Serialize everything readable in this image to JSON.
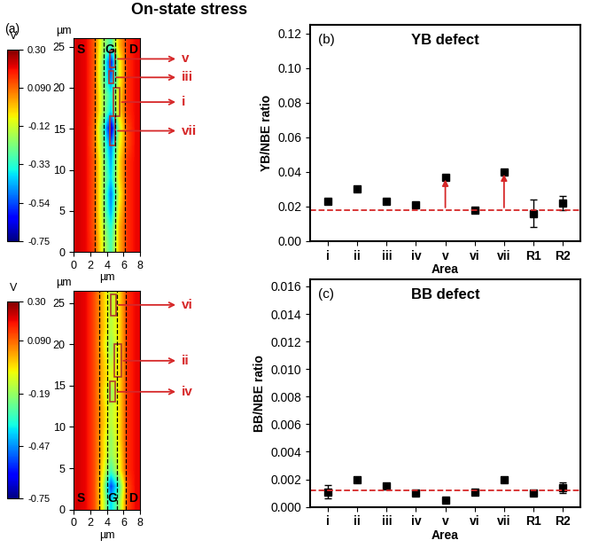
{
  "title": "On-state stress",
  "chart_data": [
    {
      "type": "heatmap",
      "panel_label": "(a)",
      "x_label": "µm",
      "y_label": "µm",
      "colorbar_label": "V",
      "region_labels": [
        "S",
        "G",
        "D"
      ],
      "xlim": [
        0,
        8
      ],
      "ylim": [
        0,
        26
      ],
      "xticks": [
        0,
        2,
        4,
        6,
        8
      ],
      "yticks": [
        0,
        5,
        10,
        15,
        20,
        25
      ],
      "colorbar_range": [
        -0.75,
        0.3
      ],
      "colorbar_ticks": [
        {
          "value": 0.3,
          "label": "0.30"
        },
        {
          "value": 0.09,
          "label": "0.090"
        },
        -0.12,
        -0.33,
        -0.54,
        -0.75
      ],
      "boundaries": [
        2.5,
        3.6,
        5.0,
        6.2
      ],
      "cells": [
        [
          0.22,
          0.2,
          0.1,
          -0.15,
          -0.3,
          0.0,
          0.15,
          0.2
        ],
        [
          0.22,
          0.2,
          0.1,
          -0.2,
          -0.6,
          -0.1,
          0.15,
          0.2
        ],
        [
          0.22,
          0.2,
          0.1,
          -0.2,
          -0.5,
          -0.1,
          0.15,
          0.2
        ],
        [
          0.22,
          0.2,
          0.1,
          -0.15,
          -0.35,
          -0.05,
          0.15,
          0.2
        ],
        [
          0.22,
          0.2,
          0.1,
          -0.15,
          -0.4,
          -0.05,
          0.15,
          0.2
        ],
        [
          0.22,
          0.2,
          0.08,
          -0.25,
          -0.7,
          -0.15,
          0.12,
          0.2
        ],
        [
          0.22,
          0.2,
          0.08,
          -0.2,
          -0.5,
          -0.1,
          0.12,
          0.2
        ],
        [
          0.22,
          0.2,
          0.1,
          -0.15,
          -0.45,
          -0.05,
          0.15,
          0.2
        ],
        [
          0.22,
          0.2,
          0.1,
          -0.15,
          -0.4,
          -0.05,
          0.15,
          0.2
        ],
        [
          0.22,
          0.2,
          0.1,
          -0.15,
          -0.5,
          -0.1,
          0.15,
          0.2
        ],
        [
          0.22,
          0.2,
          0.1,
          -0.15,
          -0.45,
          -0.05,
          0.15,
          0.2
        ],
        [
          0.22,
          0.2,
          0.1,
          -0.12,
          -0.35,
          0.0,
          0.15,
          0.2
        ],
        [
          0.22,
          0.2,
          0.12,
          -0.1,
          -0.3,
          0.0,
          0.15,
          0.2
        ]
      ],
      "areas": [
        {
          "label": "v",
          "x": [
            4.3,
            5.0
          ],
          "y": [
            22.5,
            24.5
          ]
        },
        {
          "label": "iii",
          "x": [
            4.2,
            4.8
          ],
          "y": [
            20.5,
            22.0
          ]
        },
        {
          "label": "i",
          "x": [
            4.8,
            5.5
          ],
          "y": [
            16.5,
            20.0
          ]
        },
        {
          "label": "vii",
          "x": [
            4.3,
            5.0
          ],
          "y": [
            13.0,
            16.5
          ]
        }
      ]
    },
    {
      "type": "heatmap",
      "x_label": "µm",
      "y_label": "µm",
      "colorbar_label": "V",
      "region_labels": [
        "S",
        "G",
        "D"
      ],
      "xlim": [
        0,
        8
      ],
      "ylim": [
        0,
        26.5
      ],
      "xticks": [
        0,
        2,
        4,
        6,
        8
      ],
      "yticks": [
        0,
        5,
        10,
        15,
        20,
        25
      ],
      "colorbar_range": [
        -0.75,
        0.3
      ],
      "colorbar_ticks": [
        {
          "value": 0.3,
          "label": "0.30"
        },
        {
          "value": 0.09,
          "label": "0.090"
        },
        -0.19,
        -0.47,
        -0.75
      ],
      "boundaries": [
        3.1,
        4.0,
        5.2,
        6.3
      ],
      "cells": [
        [
          0.22,
          0.2,
          0.12,
          0.0,
          -0.15,
          -0.05,
          0.15,
          0.2
        ],
        [
          0.22,
          0.2,
          0.12,
          0.0,
          -0.15,
          -0.05,
          0.15,
          0.2
        ],
        [
          0.22,
          0.2,
          0.12,
          0.0,
          -0.15,
          -0.05,
          0.15,
          0.2
        ],
        [
          0.22,
          0.2,
          0.12,
          -0.02,
          -0.2,
          -0.05,
          0.15,
          0.2
        ],
        [
          0.22,
          0.2,
          0.12,
          0.0,
          -0.15,
          -0.05,
          0.15,
          0.2
        ],
        [
          0.22,
          0.2,
          0.12,
          0.0,
          -0.1,
          -0.05,
          0.15,
          0.2
        ],
        [
          0.22,
          0.2,
          0.12,
          -0.02,
          -0.2,
          -0.05,
          0.15,
          0.2
        ],
        [
          0.22,
          0.2,
          0.12,
          0.0,
          -0.15,
          -0.05,
          0.15,
          0.2
        ],
        [
          0.22,
          0.2,
          0.12,
          0.0,
          -0.15,
          -0.05,
          0.15,
          0.2
        ],
        [
          0.22,
          0.2,
          0.12,
          -0.02,
          -0.2,
          -0.05,
          0.15,
          0.2
        ],
        [
          0.22,
          0.2,
          0.12,
          -0.02,
          -0.2,
          -0.08,
          0.15,
          0.2
        ],
        [
          0.22,
          0.2,
          0.12,
          -0.05,
          -0.3,
          -0.1,
          0.15,
          0.2
        ],
        [
          0.22,
          0.2,
          0.12,
          -0.1,
          -0.55,
          -0.3,
          0.12,
          0.2
        ],
        [
          0.22,
          0.2,
          0.12,
          -0.08,
          -0.4,
          -0.2,
          0.12,
          0.2
        ]
      ],
      "areas": [
        {
          "label": "vi",
          "x": [
            4.5,
            5.1
          ],
          "y": [
            23.5,
            26.0
          ]
        },
        {
          "label": "ii",
          "x": [
            4.9,
            5.7
          ],
          "y": [
            16.0,
            20.0
          ]
        },
        {
          "label": "iv",
          "x": [
            4.4,
            5.0
          ],
          "y": [
            13.0,
            15.5
          ]
        }
      ]
    },
    {
      "type": "scatter",
      "panel_label": "(b)",
      "title": "YB defect",
      "x_label": "Area",
      "y_label": "YB/NBE ratio",
      "categories": [
        "i",
        "ii",
        "iii",
        "iv",
        "v",
        "vi",
        "vii",
        "R1",
        "R2"
      ],
      "values": [
        0.023,
        0.03,
        0.023,
        0.021,
        0.037,
        0.018,
        0.04,
        0.016,
        0.022
      ],
      "errors": [
        null,
        null,
        null,
        null,
        null,
        null,
        null,
        0.008,
        0.004
      ],
      "reference": 0.018,
      "arrow_categories": [
        "v",
        "vii"
      ],
      "color": "#000000",
      "marker": "square",
      "ylim": [
        0,
        0.125
      ],
      "yticks": [
        {
          "value": 0.0,
          "label": "0.00"
        },
        0.02,
        0.04,
        0.06,
        0.08,
        {
          "value": 0.1,
          "label": "0.10"
        },
        0.12
      ]
    },
    {
      "type": "scatter",
      "panel_label": "(c)",
      "title": "BB defect",
      "x_label": "Area",
      "y_label": "BB/NBE ratio",
      "categories": [
        "i",
        "ii",
        "iii",
        "iv",
        "v",
        "vi",
        "vii",
        "R1",
        "R2"
      ],
      "values": [
        0.0011,
        0.002,
        0.0015,
        0.001,
        0.0005,
        0.0011,
        0.002,
        0.001,
        0.0014
      ],
      "errors": [
        0.0005,
        null,
        null,
        null,
        null,
        null,
        null,
        null,
        0.0004
      ],
      "reference": 0.0012,
      "arrow_categories": [],
      "color": "#000000",
      "marker": "square",
      "ylim": [
        0,
        0.0165
      ],
      "yticks": [
        {
          "value": 0.0,
          "label": "0.000"
        },
        0.002,
        0.004,
        0.006,
        0.008,
        {
          "value": 0.01,
          "label": "0.010"
        },
        0.012,
        0.014,
        0.016
      ]
    }
  ]
}
